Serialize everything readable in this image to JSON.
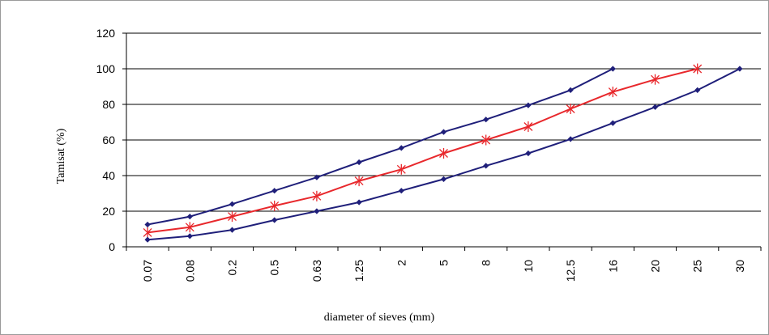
{
  "chart_data": {
    "type": "line",
    "title": "",
    "xlabel": "diameter of sieves (mm)",
    "ylabel": "Tamisat (%)",
    "ylim": [
      0,
      120
    ],
    "yticks": [
      0,
      20,
      40,
      60,
      80,
      100,
      120
    ],
    "grid": "horizontal",
    "legend": "none",
    "categories": [
      "0.07",
      "0.08",
      "0.2",
      "0.5",
      "0.63",
      "1.25",
      "2",
      "5",
      "8",
      "10",
      "12.5",
      "16",
      "20",
      "25",
      "30"
    ],
    "series": [
      {
        "color": "#1f1f7a",
        "marker": "diamond",
        "values": [
          12.5,
          17,
          24,
          31.5,
          39,
          47.5,
          55.5,
          64.5,
          71.5,
          79.5,
          88,
          100,
          null,
          null,
          null
        ]
      },
      {
        "color": "#e8282c",
        "marker": "asterisk",
        "values": [
          8,
          11,
          17,
          23,
          28.5,
          37,
          43.5,
          52.5,
          60,
          67.5,
          77.5,
          87,
          94,
          100,
          null
        ]
      },
      {
        "color": "#1f1f7a",
        "marker": "diamond",
        "values": [
          4,
          6,
          9.5,
          15,
          20,
          25,
          31.5,
          38,
          45.5,
          52.5,
          60.5,
          69.5,
          78.5,
          88,
          100
        ]
      }
    ]
  }
}
